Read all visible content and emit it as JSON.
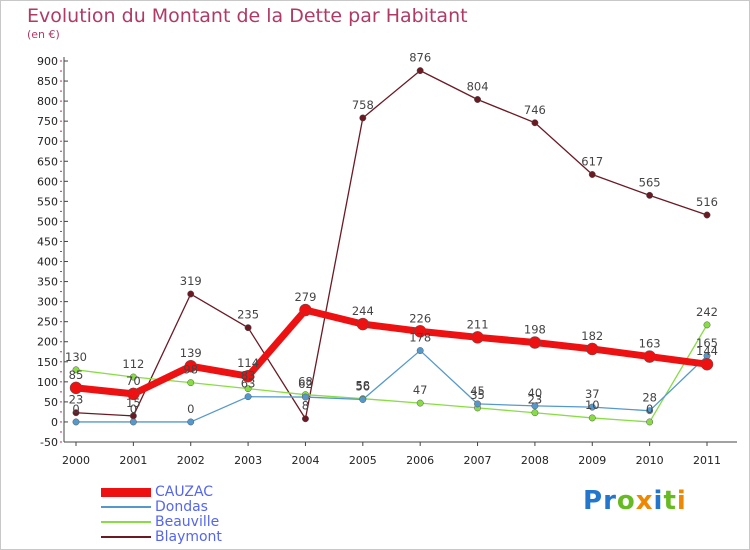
{
  "chart_data": {
    "type": "line",
    "title": "Evolution du Montant de la Dette par Habitant",
    "subtitle": "(en €)",
    "x": [
      "2000",
      "2001",
      "2002",
      "2003",
      "2004",
      "2005",
      "2006",
      "2007",
      "2008",
      "2009",
      "2010",
      "2011"
    ],
    "ylim": [
      -50,
      900
    ],
    "yticks": [
      -50,
      0,
      50,
      100,
      150,
      200,
      250,
      300,
      350,
      400,
      450,
      500,
      550,
      600,
      650,
      700,
      750,
      800,
      850,
      900
    ],
    "grid": false,
    "legend_position": "bottom-left",
    "series": [
      {
        "name": "Blaymont",
        "color": "#6b1a24",
        "values": [
          23,
          15,
          319,
          235,
          8,
          758,
          876,
          804,
          746,
          617,
          565,
          516
        ]
      },
      {
        "name": "Beauville",
        "color": "#88dd44",
        "values": [
          130,
          112,
          98,
          83,
          68,
          58,
          47,
          35,
          23,
          10,
          0,
          242
        ]
      },
      {
        "name": "Dondas",
        "color": "#5599cc",
        "values": [
          0,
          0,
          0,
          63,
          62,
          56,
          178,
          45,
          40,
          37,
          28,
          165
        ]
      },
      {
        "name": "CAUZAC",
        "color": "#ee1111",
        "values": [
          85,
          70,
          139,
          114,
          279,
          244,
          226,
          211,
          198,
          182,
          163,
          144
        ]
      }
    ],
    "legend_order": [
      "CAUZAC",
      "Dondas",
      "Beauville",
      "Blaymont"
    ]
  },
  "logo": {
    "letters": [
      {
        "ch": "P",
        "color": "#2277cc"
      },
      {
        "ch": "r",
        "color": "#2277cc"
      },
      {
        "ch": "o",
        "color": "#66bb22"
      },
      {
        "ch": "x",
        "color": "#ee8800"
      },
      {
        "ch": "i",
        "color": "#2277cc"
      },
      {
        "ch": "t",
        "color": "#66bb22"
      },
      {
        "ch": "i",
        "color": "#ee8800"
      }
    ]
  }
}
